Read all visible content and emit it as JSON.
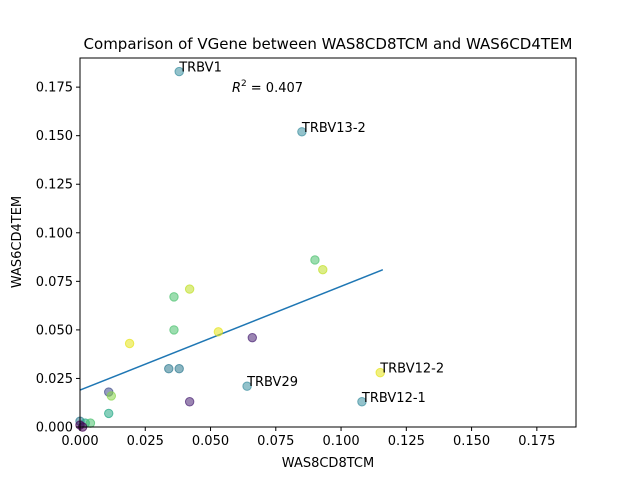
{
  "chart_data": {
    "type": "scatter",
    "title": "Comparison of VGene between WAS8CD8TCM and WAS6CD4TEM",
    "xlabel": "WAS8CD8TCM",
    "ylabel": "WAS6CD4TEM",
    "xlim": [
      0,
      0.19
    ],
    "ylim": [
      0,
      0.19
    ],
    "xticks": [
      "0.000",
      "0.025",
      "0.050",
      "0.075",
      "0.100",
      "0.125",
      "0.150",
      "0.175"
    ],
    "yticks": [
      "0.000",
      "0.025",
      "0.050",
      "0.075",
      "0.100",
      "0.125",
      "0.150",
      "0.175"
    ],
    "grid": false,
    "r2_label": "= 0.407",
    "points": [
      {
        "x": 0.038,
        "y": 0.183,
        "color": "#3b8fa0",
        "label": "TRBV1"
      },
      {
        "x": 0.085,
        "y": 0.152,
        "color": "#3b8fa0",
        "label": "TRBV13-2"
      },
      {
        "x": 0.115,
        "y": 0.028,
        "color": "#e5e419",
        "label": "TRBV12-2"
      },
      {
        "x": 0.064,
        "y": 0.021,
        "color": "#3b8fa0",
        "label": "TRBV29"
      },
      {
        "x": 0.108,
        "y": 0.013,
        "color": "#3b8fa0",
        "label": "TRBV12-1"
      },
      {
        "x": 0.09,
        "y": 0.086,
        "color": "#4ac16d",
        "label": ""
      },
      {
        "x": 0.093,
        "y": 0.081,
        "color": "#c0df25",
        "label": ""
      },
      {
        "x": 0.036,
        "y": 0.067,
        "color": "#4ac16d",
        "label": ""
      },
      {
        "x": 0.042,
        "y": 0.071,
        "color": "#c0df25",
        "label": ""
      },
      {
        "x": 0.036,
        "y": 0.05,
        "color": "#4ac16d",
        "label": ""
      },
      {
        "x": 0.053,
        "y": 0.049,
        "color": "#e5e419",
        "label": ""
      },
      {
        "x": 0.066,
        "y": 0.046,
        "color": "#482173",
        "label": ""
      },
      {
        "x": 0.019,
        "y": 0.043,
        "color": "#e5e419",
        "label": ""
      },
      {
        "x": 0.034,
        "y": 0.03,
        "color": "#2a788e",
        "label": ""
      },
      {
        "x": 0.038,
        "y": 0.03,
        "color": "#2a788e",
        "label": ""
      },
      {
        "x": 0.011,
        "y": 0.018,
        "color": "#3e4a89",
        "label": ""
      },
      {
        "x": 0.012,
        "y": 0.016,
        "color": "#86d549",
        "label": ""
      },
      {
        "x": 0.011,
        "y": 0.007,
        "color": "#22a884",
        "label": ""
      },
      {
        "x": 0.042,
        "y": 0.013,
        "color": "#482173",
        "label": ""
      },
      {
        "x": 0.0,
        "y": 0.003,
        "color": "#2a788e",
        "label": ""
      },
      {
        "x": 0.002,
        "y": 0.002,
        "color": "#22a884",
        "label": ""
      },
      {
        "x": 0.004,
        "y": 0.002,
        "color": "#4ac16d",
        "label": ""
      },
      {
        "x": 0.0,
        "y": 0.001,
        "color": "#440154",
        "label": ""
      },
      {
        "x": 0.001,
        "y": 0.0,
        "color": "#440154",
        "label": ""
      }
    ],
    "fit_line": {
      "x": [
        0.0,
        0.116
      ],
      "y": [
        0.019,
        0.081
      ],
      "color": "#1f77b4"
    }
  }
}
